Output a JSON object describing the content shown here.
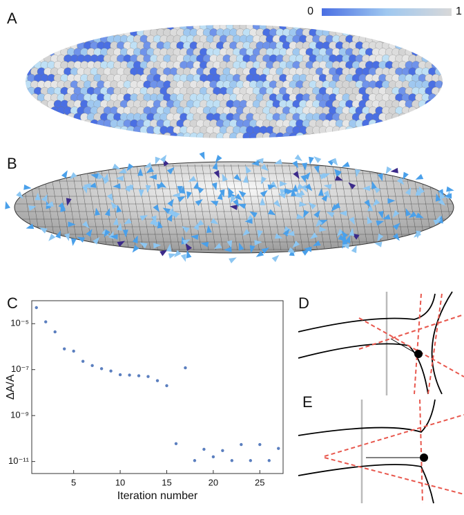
{
  "panels": {
    "A": {
      "label": "A",
      "colorbar": {
        "min_label": "0",
        "max_label": "1"
      }
    },
    "B": {
      "label": "B"
    },
    "C": {
      "label": "C"
    },
    "D": {
      "label": "D"
    },
    "E": {
      "label": "E"
    }
  },
  "chart_data": {
    "type": "scatter",
    "x_label": "Iteration number",
    "y_label": "ΔA/A",
    "x": [
      1,
      2,
      3,
      4,
      5,
      6,
      7,
      8,
      9,
      10,
      11,
      12,
      13,
      14,
      15,
      16,
      17,
      18,
      19,
      20,
      21,
      22,
      23,
      24,
      25,
      26,
      27
    ],
    "values": [
      5e-05,
      1.2e-05,
      4.4e-06,
      8e-07,
      6.4e-07,
      2.3e-07,
      1.5e-07,
      1.1e-07,
      8.7e-08,
      6e-08,
      5.8e-08,
      5.4e-08,
      5e-08,
      3.3e-08,
      2e-08,
      6e-11,
      1.2e-07,
      1.1e-11,
      3.4e-11,
      1.6e-11,
      3e-11,
      1.1e-11,
      5.5e-11,
      1.1e-11,
      5.5e-11,
      1.1e-11,
      3.7e-11
    ],
    "color": "#5b7fbf",
    "log_y": true,
    "xlim": [
      0.5,
      27.5
    ],
    "ylim": [
      3e-12,
      0.0001
    ],
    "xticks": [
      5,
      10,
      15,
      20,
      25
    ],
    "yticks": [
      {
        "value": 1e-05,
        "label": "10⁻⁵"
      },
      {
        "value": 1e-07,
        "label": "10⁻⁷"
      },
      {
        "value": 1e-09,
        "label": "10⁻⁹"
      },
      {
        "value": 1e-11,
        "label": "10⁻¹¹"
      }
    ]
  }
}
